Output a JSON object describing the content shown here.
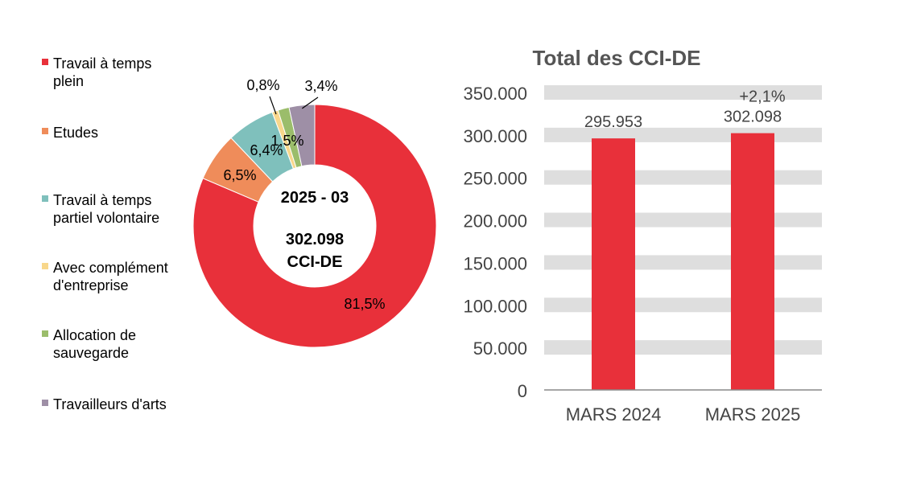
{
  "chart_data": [
    {
      "type": "pie",
      "subtype": "donut",
      "center_label": {
        "period": "2025 - 03",
        "total": "302.098",
        "unit": "CCI-DE"
      },
      "slices": [
        {
          "label": "Travail à temps plein",
          "value": 81.5,
          "value_label": "81,5%",
          "color": "#e8303a"
        },
        {
          "label": "Etudes",
          "value": 6.5,
          "value_label": "6,5%",
          "color": "#ef8c5a"
        },
        {
          "label": "Travail à temps partiel volontaire",
          "value": 6.4,
          "value_label": "6,4%",
          "color": "#7fc0bc"
        },
        {
          "label": "Avec complément d'entreprise",
          "value": 0.8,
          "value_label": "0,8%",
          "color": "#f8d78b"
        },
        {
          "label": "Allocation de sauvegarde",
          "value": 1.5,
          "value_label": "1,5%",
          "color": "#9bbd6b"
        },
        {
          "label": "Travailleurs d'arts",
          "value": 3.4,
          "value_label": "3,4%",
          "color": "#9e8fa6"
        }
      ],
      "legend": {
        "position": "left",
        "entries": [
          {
            "lines": [
              "Travail à temps",
              "plein"
            ],
            "color": "#e8303a"
          },
          {
            "lines": [
              "Etudes"
            ],
            "color": "#ef8c5a"
          },
          {
            "lines": [
              "Travail à temps",
              "partiel volontaire"
            ],
            "color": "#7fc0bc"
          },
          {
            "lines": [
              "Avec complément",
              "d'entreprise"
            ],
            "color": "#f8d78b"
          },
          {
            "lines": [
              "Allocation de",
              "sauvegarde"
            ],
            "color": "#9bbd6b"
          },
          {
            "lines": [
              "Travailleurs d'arts"
            ],
            "color": "#9e8fa6"
          }
        ]
      }
    },
    {
      "type": "bar",
      "title": "Total des CCI-DE",
      "categories": [
        "MARS 2024",
        "MARS 2025"
      ],
      "values": [
        295953,
        302098
      ],
      "data_labels": [
        "295.953",
        "302.098"
      ],
      "annotation": {
        "category": "MARS 2025",
        "text": "+2,1%"
      },
      "bar_color": "#e8303a",
      "ylim": [
        0,
        350000
      ],
      "yticks": [
        {
          "value": 0,
          "label": "0"
        },
        {
          "value": 50000,
          "label": "50.000"
        },
        {
          "value": 100000,
          "label": "100.000"
        },
        {
          "value": 150000,
          "label": "150.000"
        },
        {
          "value": 200000,
          "label": "200.000"
        },
        {
          "value": 250000,
          "label": "250.000"
        },
        {
          "value": 300000,
          "label": "300.000"
        },
        {
          "value": 350000,
          "label": "350.000"
        }
      ],
      "grid": "banded",
      "grid_color": "#dedede"
    }
  ]
}
